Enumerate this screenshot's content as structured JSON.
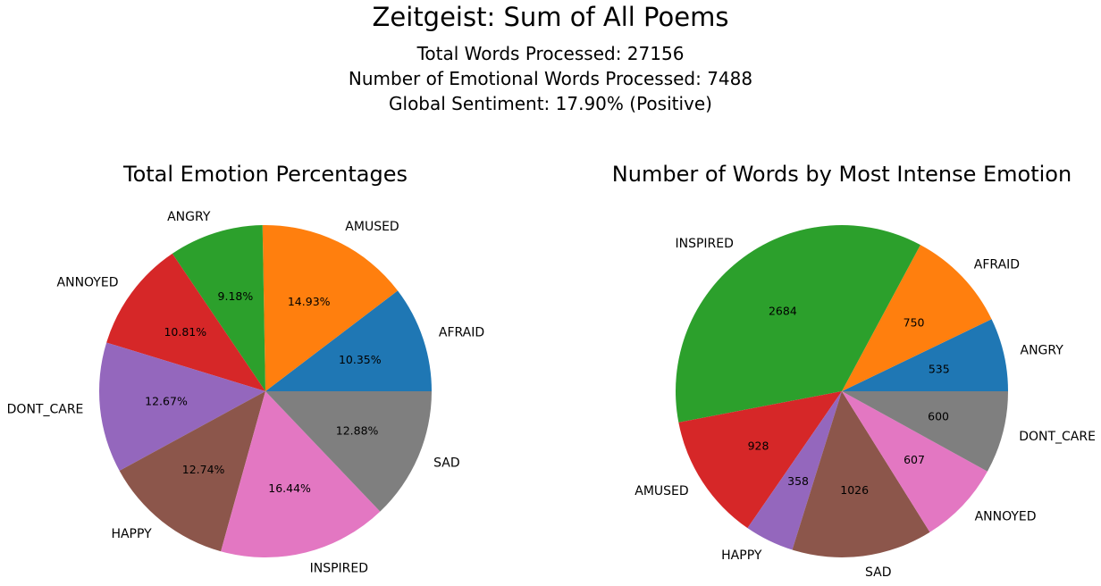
{
  "header": {
    "title": "Zeitgeist: Sum of All Poems",
    "total_words": "Total Words Processed: 27156",
    "emotional_words": "Number of Emotional Words Processed: 7488",
    "sentiment": "Global Sentiment: 17.90% (Positive)"
  },
  "colors": [
    "#1f77b4",
    "#ff7f0e",
    "#2ca02c",
    "#d62728",
    "#9467bd",
    "#8c564b",
    "#e377c2",
    "#7f7f7f"
  ],
  "chart_data": [
    {
      "type": "pie",
      "title": "Total Emotion Percentages",
      "labels": [
        "AFRAID",
        "AMUSED",
        "ANGRY",
        "ANNOYED",
        "DONT_CARE",
        "HAPPY",
        "INSPIRED",
        "SAD"
      ],
      "values": [
        10.35,
        14.93,
        9.18,
        10.81,
        12.67,
        12.74,
        16.44,
        12.88
      ],
      "value_labels": [
        "10.35%",
        "14.93%",
        "9.18%",
        "10.81%",
        "12.67%",
        "12.74%",
        "16.44%",
        "12.88%"
      ],
      "start_angle": 0,
      "direction": "counterclockwise"
    },
    {
      "type": "pie",
      "title": "Number of Words by Most Intense Emotion",
      "labels": [
        "ANGRY",
        "AFRAID",
        "INSPIRED",
        "AMUSED",
        "HAPPY",
        "SAD",
        "ANNOYED",
        "DONT_CARE"
      ],
      "values": [
        535,
        750,
        2684,
        928,
        358,
        1026,
        607,
        600
      ],
      "value_labels": [
        "535",
        "750",
        "2684",
        "928",
        "358",
        "1026",
        "607",
        "600"
      ],
      "start_angle": 0,
      "direction": "counterclockwise"
    }
  ]
}
